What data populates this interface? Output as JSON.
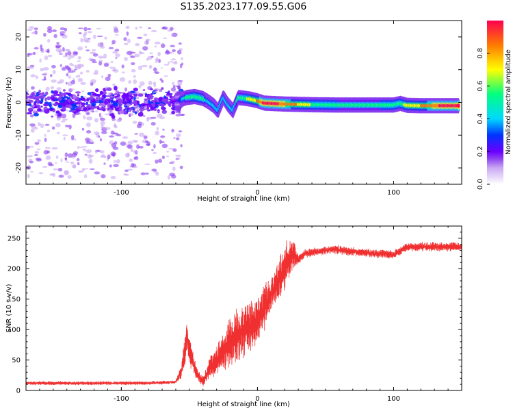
{
  "figure": {
    "title": "S135.2023.177.09.55.G06"
  },
  "colors": {
    "snr_line": "#f03030",
    "colormap": [
      "#ffffff",
      "#e9dcfb",
      "#c9a8f3",
      "#8a3cf0",
      "#6a00ff",
      "#0033ff",
      "#00d8ff",
      "#00ff80",
      "#ffff00",
      "#ff7a00",
      "#ff0050"
    ]
  },
  "chart_data": [
    {
      "type": "heatmap",
      "title": "S135.2023.177.09.55.G06",
      "xlabel": "Height of straight line (km)",
      "ylabel": "Frequency (Hz)",
      "xlim": [
        -170,
        150
      ],
      "ylim": [
        -25,
        25
      ],
      "xticks": [
        -100,
        0,
        100
      ],
      "xtick_labels": [
        "-100",
        "0",
        "100"
      ],
      "yticks": [
        -20,
        -10,
        0,
        10,
        20
      ],
      "ytick_labels": [
        "-20",
        "-10",
        "0",
        "10",
        "20"
      ],
      "colorbar": {
        "label": "Normalized spectral amplitude",
        "range": [
          0,
          1
        ],
        "ticks": [
          0.0,
          0.2,
          0.4,
          0.6,
          0.8
        ],
        "tick_labels": [
          "0.0",
          "0.2",
          "0.4",
          "0.6",
          "0.8"
        ]
      },
      "ridge": {
        "description": "dominant frequency ridge vs height",
        "x": [
          -58,
          -52,
          -46,
          -40,
          -36,
          -32,
          -29,
          -25,
          -22,
          -18,
          -14,
          -10,
          -5,
          0,
          5,
          10,
          20,
          30,
          40,
          60,
          80,
          100,
          105,
          110,
          120,
          130,
          140,
          147
        ],
        "frequency": [
          0.5,
          1.5,
          1.8,
          1.2,
          0.2,
          -1.0,
          -2.5,
          1.5,
          -0.5,
          -2.5,
          1.5,
          1.3,
          1.0,
          0.5,
          -0.2,
          -0.3,
          -0.5,
          -0.6,
          -0.7,
          -0.8,
          -0.8,
          -0.8,
          -0.3,
          -0.9,
          -1.0,
          -1.0,
          -1.0,
          -1.0
        ],
        "amplitude": [
          0.2,
          0.45,
          0.55,
          0.5,
          0.3,
          0.35,
          0.3,
          0.4,
          0.3,
          0.35,
          0.45,
          0.5,
          0.6,
          0.7,
          0.9,
          0.95,
          0.8,
          0.7,
          0.55,
          0.5,
          0.45,
          0.55,
          0.5,
          0.6,
          0.7,
          0.8,
          0.95,
          0.95
        ]
      },
      "noise_region": {
        "x_range": [
          -170,
          -55
        ],
        "frequency_spread_hz": 25,
        "core_band_hz": 6,
        "amplitude": [
          0.05,
          0.35
        ]
      },
      "grid": false
    },
    {
      "type": "line",
      "xlabel": "Height of straight line (km)",
      "ylabel": "SNR (10 * v/v)",
      "xlim": [
        -170,
        150
      ],
      "ylim": [
        0,
        270
      ],
      "xticks": [
        -100,
        0,
        100
      ],
      "xtick_labels": [
        "-100",
        "0",
        "100"
      ],
      "yticks": [
        0,
        50,
        100,
        150,
        200,
        250
      ],
      "ytick_labels": [
        "0",
        "50",
        "100",
        "150",
        "200",
        "250"
      ],
      "series": [
        {
          "envelope_x": [
            -170,
            -120,
            -80,
            -60,
            -56,
            -52,
            -48,
            -44,
            -40,
            -34,
            -28,
            -22,
            -16,
            -12,
            -6,
            0,
            6,
            12,
            18,
            22,
            26,
            30,
            35,
            45,
            55,
            70,
            85,
            100,
            110,
            125,
            140,
            150
          ],
          "envelope_mean": [
            12,
            12,
            12,
            14,
            30,
            85,
            50,
            25,
            15,
            40,
            55,
            75,
            90,
            95,
            105,
            115,
            140,
            165,
            195,
            210,
            225,
            215,
            225,
            228,
            232,
            228,
            225,
            223,
            236,
            236,
            236,
            236
          ],
          "envelope_amp": [
            5,
            5,
            5,
            5,
            20,
            50,
            35,
            15,
            15,
            30,
            45,
            60,
            70,
            70,
            70,
            60,
            60,
            50,
            60,
            55,
            45,
            15,
            12,
            12,
            12,
            12,
            12,
            12,
            12,
            12,
            12,
            12
          ]
        }
      ],
      "grid": false
    }
  ]
}
